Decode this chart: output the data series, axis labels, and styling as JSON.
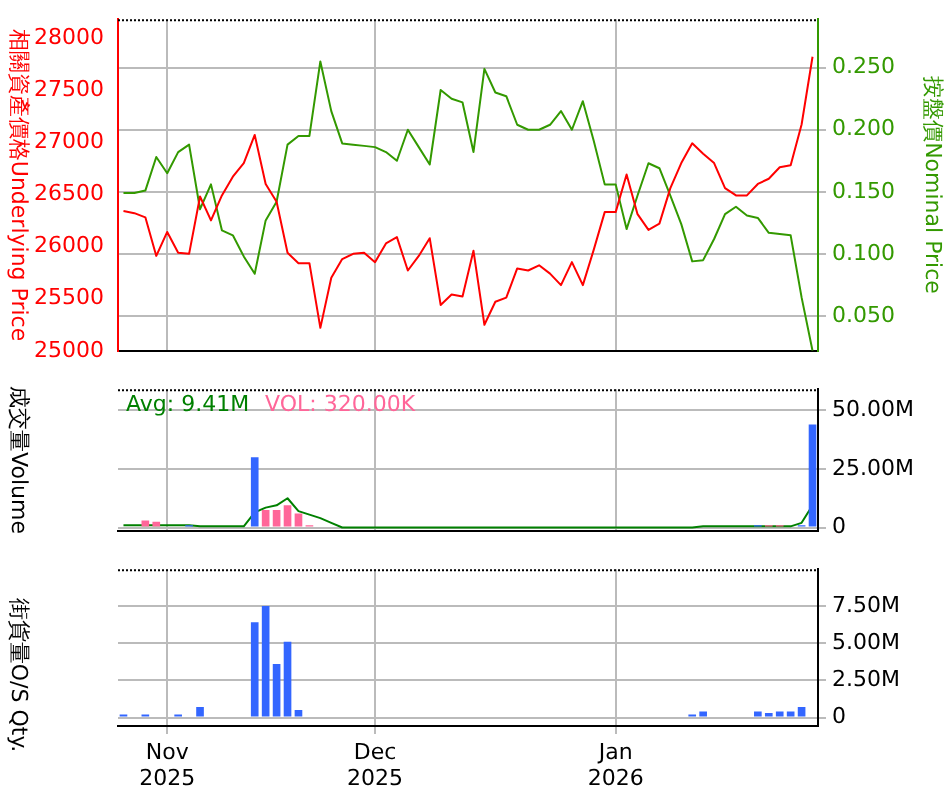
{
  "chart_data": [
    {
      "type": "line",
      "ylabel": "相關資產價格Underlying Price",
      "y2label": "按盤價Nominal Price",
      "categories": [
        null,
        null,
        null,
        null,
        null,
        null,
        null,
        null,
        null,
        null,
        null,
        null,
        null,
        null,
        null,
        null,
        null,
        null,
        null,
        null,
        null,
        null,
        null,
        null,
        null,
        null,
        null,
        null,
        null,
        null,
        null,
        null,
        null,
        null,
        null,
        null,
        null,
        null,
        null,
        null,
        null,
        null,
        null,
        null,
        null,
        null,
        null,
        null,
        null,
        null,
        null,
        null,
        null,
        null,
        null,
        null,
        null,
        null,
        null,
        null,
        null,
        null,
        null,
        null
      ],
      "series": [
        {
          "color": "#ff0000",
          "values": [
            26340,
            26320,
            26280,
            25910,
            26140,
            25940,
            25930,
            26480,
            26250,
            26490,
            26670,
            26800,
            27070,
            26600,
            26430,
            25940,
            25840,
            25840,
            25220,
            25700,
            25880,
            25930,
            25940,
            25850,
            26030,
            26090,
            25770,
            25910,
            26080,
            25440,
            25540,
            25520,
            25960,
            25250,
            25470,
            25510,
            25790,
            25770,
            25820,
            25740,
            25630,
            25850,
            25630,
            25970,
            26330,
            26330,
            26690,
            26310,
            26160,
            26220,
            26560,
            26800,
            26990,
            26890,
            26800,
            26560,
            26490,
            26490,
            26600,
            26650,
            26760,
            26780,
            27170,
            27820
          ]
        },
        {
          "color": "#339900",
          "axis": "y2",
          "values": [
            0.149,
            0.149,
            0.151,
            0.178,
            0.165,
            0.182,
            0.188,
            0.136,
            0.156,
            0.119,
            0.115,
            0.098,
            0.084,
            0.127,
            0.142,
            0.188,
            0.195,
            0.195,
            0.255,
            0.215,
            0.189,
            0.188,
            0.187,
            0.186,
            0.182,
            0.175,
            0.2,
            0.186,
            0.172,
            0.232,
            0.225,
            0.222,
            0.182,
            0.249,
            0.23,
            0.227,
            0.204,
            0.2,
            0.2,
            0.204,
            0.215,
            0.2,
            0.223,
            0.191,
            0.156,
            0.156,
            0.12,
            0.147,
            0.173,
            0.169,
            0.147,
            0.124,
            0.094,
            0.095,
            0.112,
            0.132,
            0.138,
            0.131,
            0.129,
            0.117,
            0.116,
            0.115,
            0.065,
            0.022
          ]
        }
      ],
      "ylim": [
        25000,
        28180
      ],
      "yticks": [
        25000,
        25500,
        26000,
        26500,
        27000,
        27500,
        28000
      ],
      "y2lim": [
        0.022,
        0.289
      ],
      "y2ticks": [
        {
          "value": 0.05,
          "label": "0.050"
        },
        {
          "value": 0.1,
          "label": "0.100"
        },
        {
          "value": 0.15,
          "label": "0.150"
        },
        {
          "value": 0.2,
          "label": "0.200"
        },
        {
          "value": 0.25,
          "label": "0.250"
        }
      ],
      "grid": true,
      "marker": "none",
      "tick_labels": "y"
    },
    {
      "type": "bar",
      "ylabel": "成交量Volume",
      "categories": [
        null,
        null,
        null,
        null,
        null,
        null,
        null,
        null,
        null,
        null,
        null,
        null,
        null,
        null,
        null,
        null,
        null,
        null,
        null,
        null,
        null,
        null,
        null,
        null,
        null,
        null,
        null,
        null,
        null,
        null,
        null,
        null,
        null,
        null,
        null,
        null,
        null,
        null,
        null,
        null,
        null,
        null,
        null,
        null,
        null,
        null,
        null,
        null,
        null,
        null,
        null,
        null,
        null,
        null,
        null,
        null,
        null,
        null,
        null,
        null,
        null,
        null,
        null,
        null
      ],
      "series": [
        {
          "color": "#3366ff",
          "values": [
            null,
            null,
            null,
            null,
            null,
            null,
            1000000,
            null,
            null,
            null,
            null,
            null,
            30000000,
            null,
            null,
            null,
            null,
            null,
            null,
            null,
            null,
            null,
            null,
            null,
            null,
            null,
            null,
            null,
            null,
            null,
            null,
            null,
            null,
            null,
            null,
            null,
            null,
            null,
            null,
            null,
            null,
            null,
            null,
            null,
            null,
            null,
            null,
            null,
            null,
            null,
            null,
            null,
            null,
            null,
            null,
            null,
            null,
            null,
            1000000,
            null,
            null,
            null,
            1000000,
            44000000
          ]
        },
        {
          "name": "VOL: 320.00K",
          "color": "#ff6699",
          "values": [
            null,
            null,
            3000000,
            2500000,
            null,
            null,
            null,
            null,
            null,
            null,
            null,
            null,
            null,
            7500000,
            7500000,
            9500000,
            6000000,
            1000000,
            null,
            null,
            null,
            null,
            null,
            null,
            null,
            null,
            null,
            null,
            null,
            null,
            null,
            null,
            null,
            null,
            null,
            null,
            null,
            null,
            null,
            null,
            null,
            null,
            null,
            null,
            null,
            null,
            null,
            null,
            null,
            null,
            null,
            null,
            null,
            null,
            null,
            null,
            null,
            null,
            null,
            1000000,
            1000000,
            null,
            null,
            null
          ]
        },
        {
          "name": "Avg: 9.41M",
          "type": "line",
          "color": "#008000",
          "values": [
            1000000,
            1000000,
            1000000,
            1000000,
            1000000,
            1000000,
            1000000,
            500000,
            500000,
            500000,
            500000,
            500000,
            6500000,
            8500000,
            9500000,
            12500000,
            7000000,
            5500000,
            4000000,
            2000000,
            0,
            0,
            0,
            0,
            0,
            0,
            0,
            0,
            0,
            0,
            0,
            0,
            0,
            0,
            0,
            0,
            0,
            0,
            0,
            0,
            0,
            0,
            0,
            0,
            0,
            0,
            0,
            0,
            0,
            0,
            0,
            0,
            0,
            500000,
            500000,
            500000,
            500000,
            500000,
            500000,
            500000,
            500000,
            500000,
            2000000,
            9500000
          ]
        }
      ],
      "ylim": [
        -1400000,
        59100000
      ],
      "yticks": [
        0,
        {
          "value": 25000000,
          "label": "25.00M"
        },
        {
          "value": 50000000,
          "label": "50.00M"
        }
      ],
      "grid": true,
      "marker": "none",
      "legend": "top left",
      "tick_labels": "y"
    },
    {
      "type": "bar",
      "ylabel": "街貨量O/S Qty.",
      "categories": [
        null,
        null,
        null,
        null,
        "Nov 2025",
        null,
        null,
        null,
        null,
        null,
        null,
        null,
        null,
        null,
        null,
        null,
        null,
        null,
        null,
        null,
        null,
        null,
        null,
        "Dec 2025",
        null,
        null,
        null,
        null,
        null,
        null,
        null,
        null,
        null,
        null,
        null,
        null,
        null,
        null,
        null,
        null,
        null,
        null,
        null,
        null,
        null,
        "Jan 2026",
        null,
        null,
        null,
        null,
        null,
        null,
        null,
        null,
        null,
        null,
        null,
        null,
        null,
        null,
        null,
        null,
        null,
        null
      ],
      "series": [
        {
          "color": "#3366ff",
          "values": [
            200000,
            null,
            200000,
            null,
            null,
            200000,
            null,
            700000,
            null,
            null,
            null,
            null,
            6400000,
            7500000,
            3600000,
            5100000,
            500000,
            null,
            null,
            null,
            null,
            null,
            null,
            null,
            null,
            null,
            null,
            null,
            null,
            null,
            null,
            null,
            null,
            null,
            null,
            null,
            null,
            null,
            null,
            null,
            null,
            null,
            null,
            null,
            null,
            null,
            null,
            null,
            null,
            null,
            null,
            null,
            200000,
            400000,
            null,
            null,
            null,
            null,
            400000,
            300000,
            400000,
            400000,
            700000,
            null
          ]
        }
      ],
      "ylim": [
        -570000,
        9970000
      ],
      "yticks": [
        0,
        {
          "value": 2500000,
          "label": "2.50M"
        },
        {
          "value": 5000000,
          "label": "5.00M"
        },
        {
          "value": 7500000,
          "label": "7.50M"
        }
      ],
      "grid": true
    }
  ]
}
